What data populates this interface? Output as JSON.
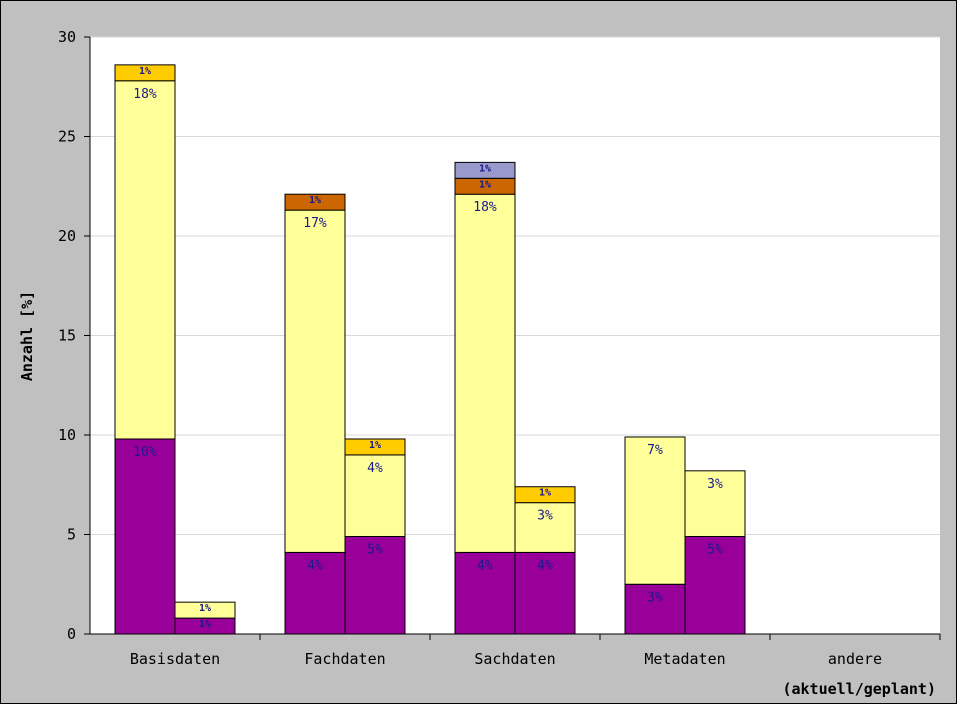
{
  "chart_data": {
    "type": "bar",
    "stacked": true,
    "ylabel": "Anzahl [%]",
    "xlabel": "(aktuell/geplant)",
    "ylim": [
      0,
      30
    ],
    "yticks": [
      "0",
      "5",
      "10",
      "15",
      "20",
      "25",
      "30"
    ],
    "grid": true,
    "categories": [
      "Basisdaten",
      "Fachdaten",
      "Sachdaten",
      "Metadaten",
      "andere"
    ],
    "colors": [
      "#990099",
      "#ffff99",
      "#ffcc00",
      "#cc6600",
      "#9999cc"
    ],
    "bars": [
      {
        "category": "Basisdaten",
        "slot": "aktuell",
        "segments": [
          {
            "value": 9.8,
            "label": "10%"
          },
          {
            "value": 18.0,
            "label": "18%"
          },
          {
            "value": 0.8,
            "label": "1%",
            "color": "#ffcc00"
          }
        ]
      },
      {
        "category": "Basisdaten",
        "slot": "geplant",
        "segments": [
          {
            "value": 0.8,
            "label": "1%"
          },
          {
            "value": 0.8,
            "label": "1%"
          }
        ]
      },
      {
        "category": "Fachdaten",
        "slot": "aktuell",
        "segments": [
          {
            "value": 4.1,
            "label": "4%"
          },
          {
            "value": 17.2,
            "label": "17%"
          },
          {
            "value": 0.8,
            "label": "1%",
            "color": "#cc6600"
          }
        ]
      },
      {
        "category": "Fachdaten",
        "slot": "geplant",
        "segments": [
          {
            "value": 4.9,
            "label": "5%"
          },
          {
            "value": 4.1,
            "label": "4%"
          },
          {
            "value": 0.8,
            "label": "1%",
            "color": "#ffcc00"
          }
        ]
      },
      {
        "category": "Sachdaten",
        "slot": "aktuell",
        "segments": [
          {
            "value": 4.1,
            "label": "4%"
          },
          {
            "value": 18.0,
            "label": "18%"
          },
          {
            "value": 0.8,
            "label": "1%",
            "color": "#cc6600"
          },
          {
            "value": 0.8,
            "label": "1%",
            "color": "#9999cc"
          }
        ]
      },
      {
        "category": "Sachdaten",
        "slot": "geplant",
        "segments": [
          {
            "value": 4.1,
            "label": "4%"
          },
          {
            "value": 2.5,
            "label": "3%"
          },
          {
            "value": 0.8,
            "label": "1%",
            "color": "#ffcc00"
          }
        ]
      },
      {
        "category": "Metadaten",
        "slot": "aktuell",
        "segments": [
          {
            "value": 2.5,
            "label": "3%"
          },
          {
            "value": 7.4,
            "label": "7%"
          }
        ]
      },
      {
        "category": "Metadaten",
        "slot": "geplant",
        "segments": [
          {
            "value": 4.9,
            "label": "5%"
          },
          {
            "value": 3.3,
            "label": "3%"
          }
        ]
      }
    ]
  }
}
